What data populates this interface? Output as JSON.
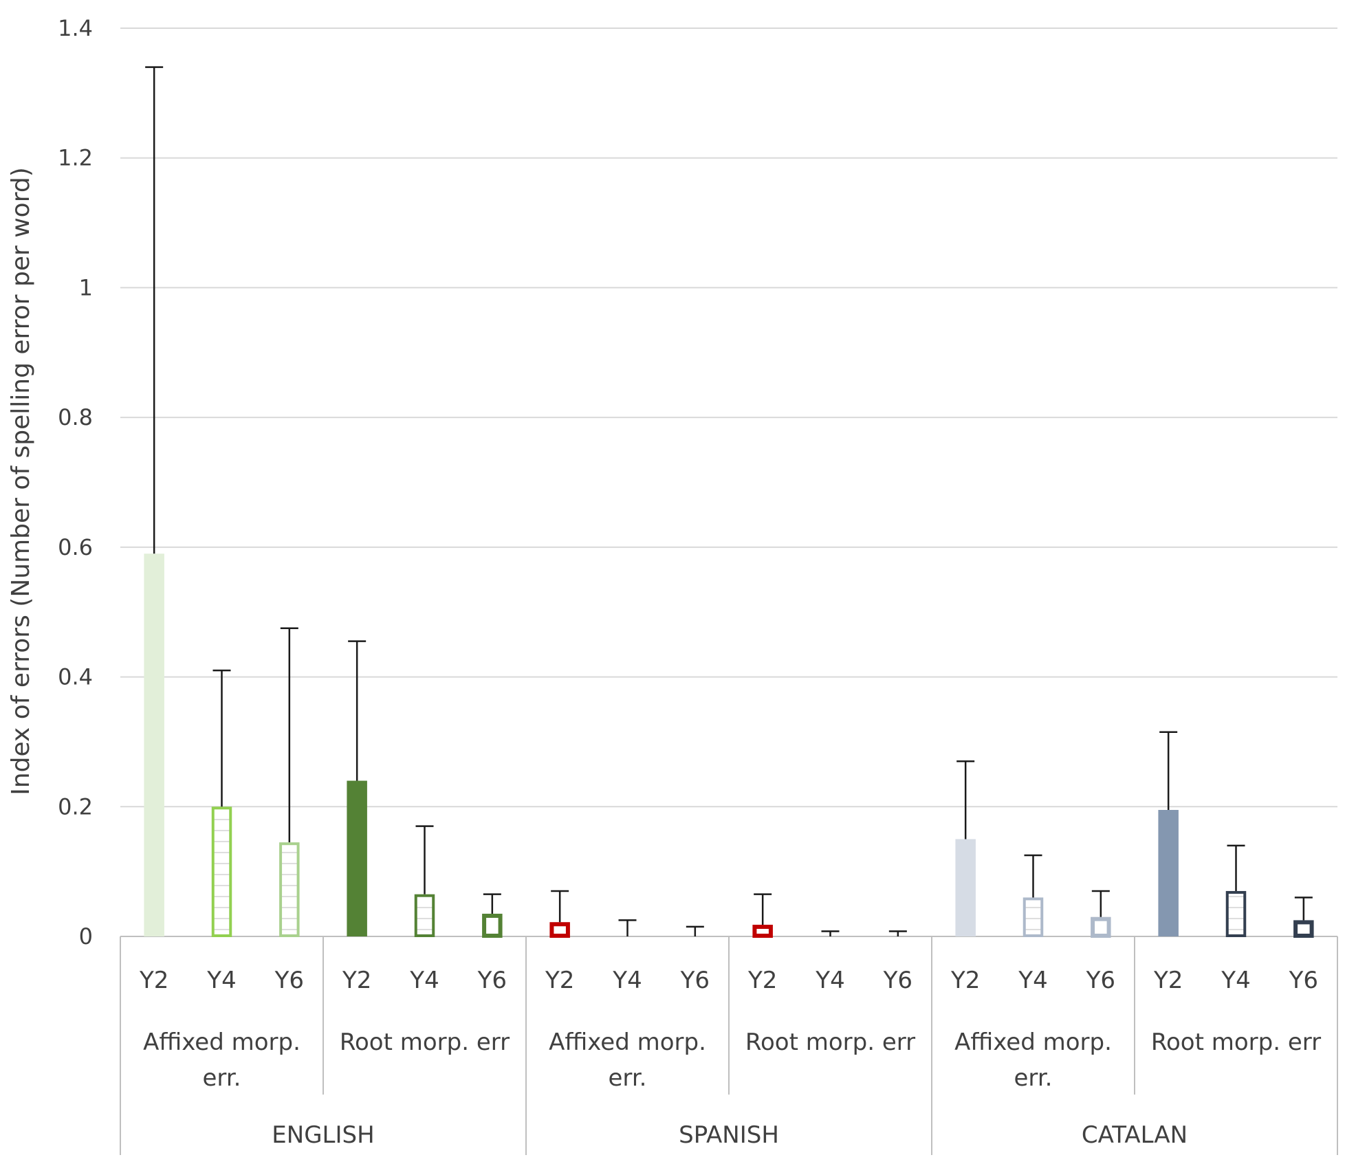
{
  "chart_data": {
    "type": "bar",
    "title": "",
    "ylabel": "Index of errors (Number of spelling error per word)",
    "ylim": [
      0,
      1.4
    ],
    "yticks": [
      "0",
      "0.2",
      "0.4",
      "0.6",
      "0.8",
      "1",
      "1.2",
      "1.4"
    ],
    "grid": true,
    "languages": [
      {
        "name": "ENGLISH",
        "groups": [
          {
            "name": "Affixed morp. err.",
            "name_lines": [
              "Affixed morp.",
              "err."
            ],
            "bars": [
              {
                "label": "Y2",
                "value": 0.59,
                "error_upper": 1.34,
                "color": "#e2efd9",
                "style": "solid"
              },
              {
                "label": "Y4",
                "value": 0.2,
                "error_upper": 0.41,
                "color": "#92d050",
                "style": "hatched"
              },
              {
                "label": "Y6",
                "value": 0.145,
                "error_upper": 0.475,
                "color": "#a9d18e",
                "style": "hatched"
              }
            ]
          },
          {
            "name": "Root morp. err",
            "name_lines": [
              "Root morp. err"
            ],
            "bars": [
              {
                "label": "Y2",
                "value": 0.24,
                "error_upper": 0.455,
                "color": "#548235",
                "style": "solid"
              },
              {
                "label": "Y4",
                "value": 0.065,
                "error_upper": 0.17,
                "color": "#548235",
                "style": "hatched"
              },
              {
                "label": "Y6",
                "value": 0.035,
                "error_upper": 0.065,
                "color": "#548235",
                "style": "outline"
              }
            ]
          }
        ]
      },
      {
        "name": "SPANISH",
        "groups": [
          {
            "name": "Affixed morp. err.",
            "name_lines": [
              "Affixed morp.",
              "err."
            ],
            "bars": [
              {
                "label": "Y2",
                "value": 0.022,
                "error_upper": 0.07,
                "color": "#c00000",
                "style": "outline"
              },
              {
                "label": "Y4",
                "value": 0.0,
                "error_upper": 0.025,
                "color": "#c00000",
                "style": "outline"
              },
              {
                "label": "Y6",
                "value": 0.0,
                "error_upper": 0.015,
                "color": "#c00000",
                "style": "outline"
              }
            ]
          },
          {
            "name": "Root morp. err",
            "name_lines": [
              "Root morp. err"
            ],
            "bars": [
              {
                "label": "Y2",
                "value": 0.018,
                "error_upper": 0.065,
                "color": "#c00000",
                "style": "outline"
              },
              {
                "label": "Y4",
                "value": 0.0,
                "error_upper": 0.008,
                "color": "#c00000",
                "style": "outline"
              },
              {
                "label": "Y6",
                "value": 0.0,
                "error_upper": 0.008,
                "color": "#c00000",
                "style": "outline"
              }
            ]
          }
        ]
      },
      {
        "name": "CATALAN",
        "groups": [
          {
            "name": "Affixed morp. err.",
            "name_lines": [
              "Affixed morp.",
              "err."
            ],
            "bars": [
              {
                "label": "Y2",
                "value": 0.15,
                "error_upper": 0.27,
                "color": "#d6dce5",
                "style": "solid"
              },
              {
                "label": "Y4",
                "value": 0.06,
                "error_upper": 0.125,
                "color": "#adb9ca",
                "style": "hatched"
              },
              {
                "label": "Y6",
                "value": 0.03,
                "error_upper": 0.07,
                "color": "#adb9ca",
                "style": "outline"
              }
            ]
          },
          {
            "name": "Root morp. err",
            "name_lines": [
              "Root morp. err"
            ],
            "bars": [
              {
                "label": "Y2",
                "value": 0.195,
                "error_upper": 0.315,
                "color": "#8497b0",
                "style": "solid"
              },
              {
                "label": "Y4",
                "value": 0.07,
                "error_upper": 0.14,
                "color": "#333f50",
                "style": "hatched"
              },
              {
                "label": "Y6",
                "value": 0.025,
                "error_upper": 0.06,
                "color": "#333f50",
                "style": "outline"
              }
            ]
          }
        ]
      }
    ]
  }
}
